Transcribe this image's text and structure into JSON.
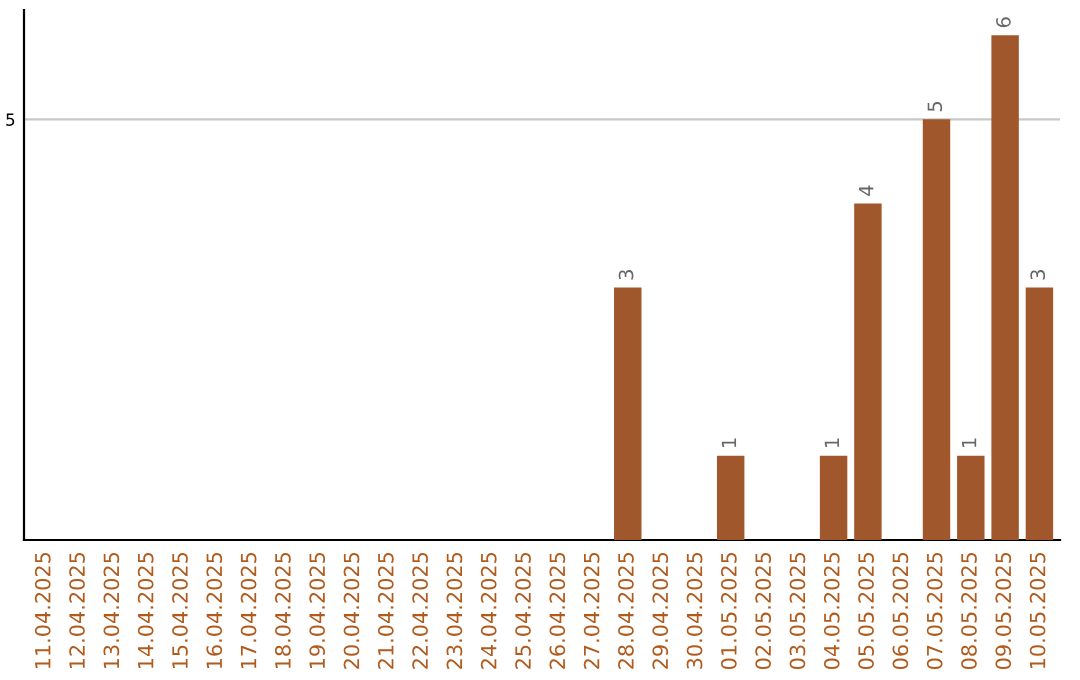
{
  "chart_data": {
    "type": "bar",
    "categories": [
      "11.04.2025",
      "12.04.2025",
      "13.04.2025",
      "14.04.2025",
      "15.04.2025",
      "16.04.2025",
      "17.04.2025",
      "18.04.2025",
      "19.04.2025",
      "20.04.2025",
      "21.04.2025",
      "22.04.2025",
      "23.04.2025",
      "24.04.2025",
      "25.04.2025",
      "26.04.2025",
      "27.04.2025",
      "28.04.2025",
      "29.04.2025",
      "30.04.2025",
      "01.05.2025",
      "02.05.2025",
      "03.05.2025",
      "04.05.2025",
      "05.05.2025",
      "06.05.2025",
      "07.05.2025",
      "08.05.2025",
      "09.05.2025",
      "10.05.2025"
    ],
    "values": [
      null,
      null,
      null,
      null,
      null,
      null,
      null,
      null,
      null,
      null,
      null,
      null,
      null,
      null,
      null,
      null,
      null,
      3,
      null,
      null,
      1,
      null,
      null,
      1,
      4,
      null,
      5,
      1,
      6,
      3
    ],
    "color": "#a0572b",
    "ylim": [
      0,
      6.3
    ],
    "yticks": [
      5
    ],
    "grid": "y",
    "data_labels": true
  }
}
